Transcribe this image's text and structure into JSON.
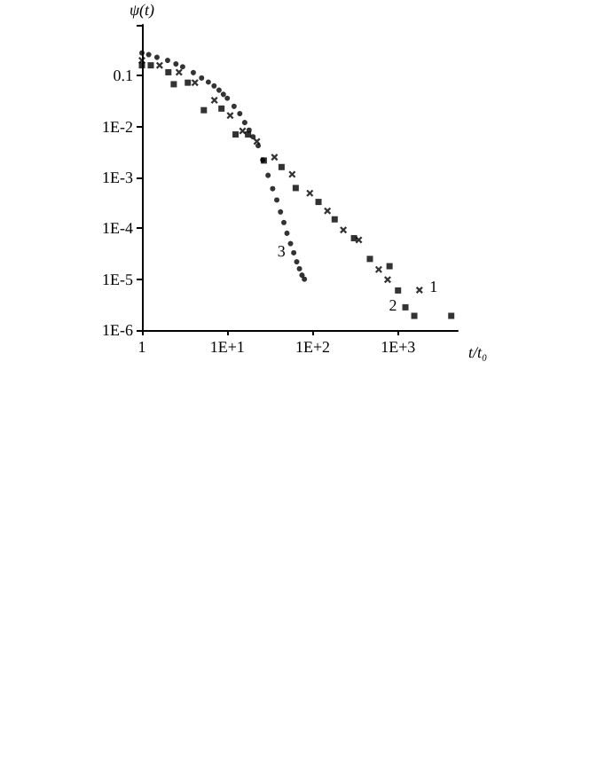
{
  "chart_data": {
    "type": "scatter",
    "xlabel": "t/t₀",
    "ylabel": "ψ(t)",
    "log": "xy",
    "grid": false,
    "xlim": [
      1,
      5000
    ],
    "xticks": [
      1,
      {
        "value": 10,
        "label": "1E+1"
      },
      {
        "value": 100,
        "label": "1E+2"
      },
      {
        "value": 1000,
        "label": "1E+3"
      }
    ],
    "ylim": [
      1e-06,
      1
    ],
    "yticks": [
      {
        "value": 1e-06,
        "label": "1E-6"
      },
      {
        "value": 1e-05,
        "label": "1E-5"
      },
      {
        "value": 0.0001,
        "label": "1E-4"
      },
      {
        "value": 0.001,
        "label": "1E-3"
      },
      {
        "value": 0.01,
        "label": "1E-2"
      },
      0.1,
      {
        "value": 1,
        "label": null
      }
    ],
    "series": [
      {
        "color": "#000000",
        "marker": "cross",
        "x": [
          1,
          1.61,
          2.72,
          4.18,
          7.06,
          10.8,
          15.1,
          22.2,
          35.7,
          57.5,
          92.7,
          149,
          229,
          347,
          594,
          755,
          1780
        ],
        "values": [
          0.2,
          0.16,
          0.117,
          0.073,
          0.033,
          0.0165,
          0.0082,
          0.0051,
          0.0025,
          0.00115,
          0.00049,
          0.00022,
          9.3e-05,
          5.9e-05,
          1.55e-05,
          9.8e-06,
          6.1e-06
        ]
      },
      {
        "color": "#000000",
        "marker": "square",
        "x": [
          1,
          1.27,
          2.04,
          2.36,
          3.45,
          5.31,
          8.55,
          12.5,
          17.5,
          26.8,
          43.2,
          63.3,
          117,
          181,
          305,
          468,
          795,
          1000,
          1220,
          1550,
          4200
        ],
        "values": [
          0.16,
          0.16,
          0.117,
          0.068,
          0.073,
          0.021,
          0.0226,
          0.007,
          0.007,
          0.00215,
          0.0016,
          0.00062,
          0.00033,
          0.00015,
          6.4e-05,
          2.5e-05,
          1.8e-05,
          6e-06,
          2.8e-06,
          1.9e-06,
          1.9e-06
        ]
      },
      {
        "color": "#000000",
        "marker": "circle",
        "x": [
          1,
          1.2,
          1.5,
          2,
          2.5,
          3,
          4,
          5,
          6,
          7,
          8,
          9,
          10,
          12,
          14,
          16,
          18,
          20,
          23,
          26,
          30,
          34,
          38,
          42,
          46,
          50,
          55,
          60,
          65,
          70,
          75,
          80
        ],
        "values": [
          0.28,
          0.26,
          0.23,
          0.2,
          0.17,
          0.15,
          0.115,
          0.09,
          0.075,
          0.063,
          0.052,
          0.043,
          0.036,
          0.025,
          0.018,
          0.012,
          0.0085,
          0.0063,
          0.0042,
          0.0022,
          0.0011,
          0.0006,
          0.00036,
          0.00021,
          0.00013,
          8e-05,
          5e-05,
          3.3e-05,
          2.2e-05,
          1.6e-05,
          1.2e-05,
          1e-05
        ]
      }
    ],
    "annotations": [
      "1",
      "2",
      "3"
    ]
  }
}
